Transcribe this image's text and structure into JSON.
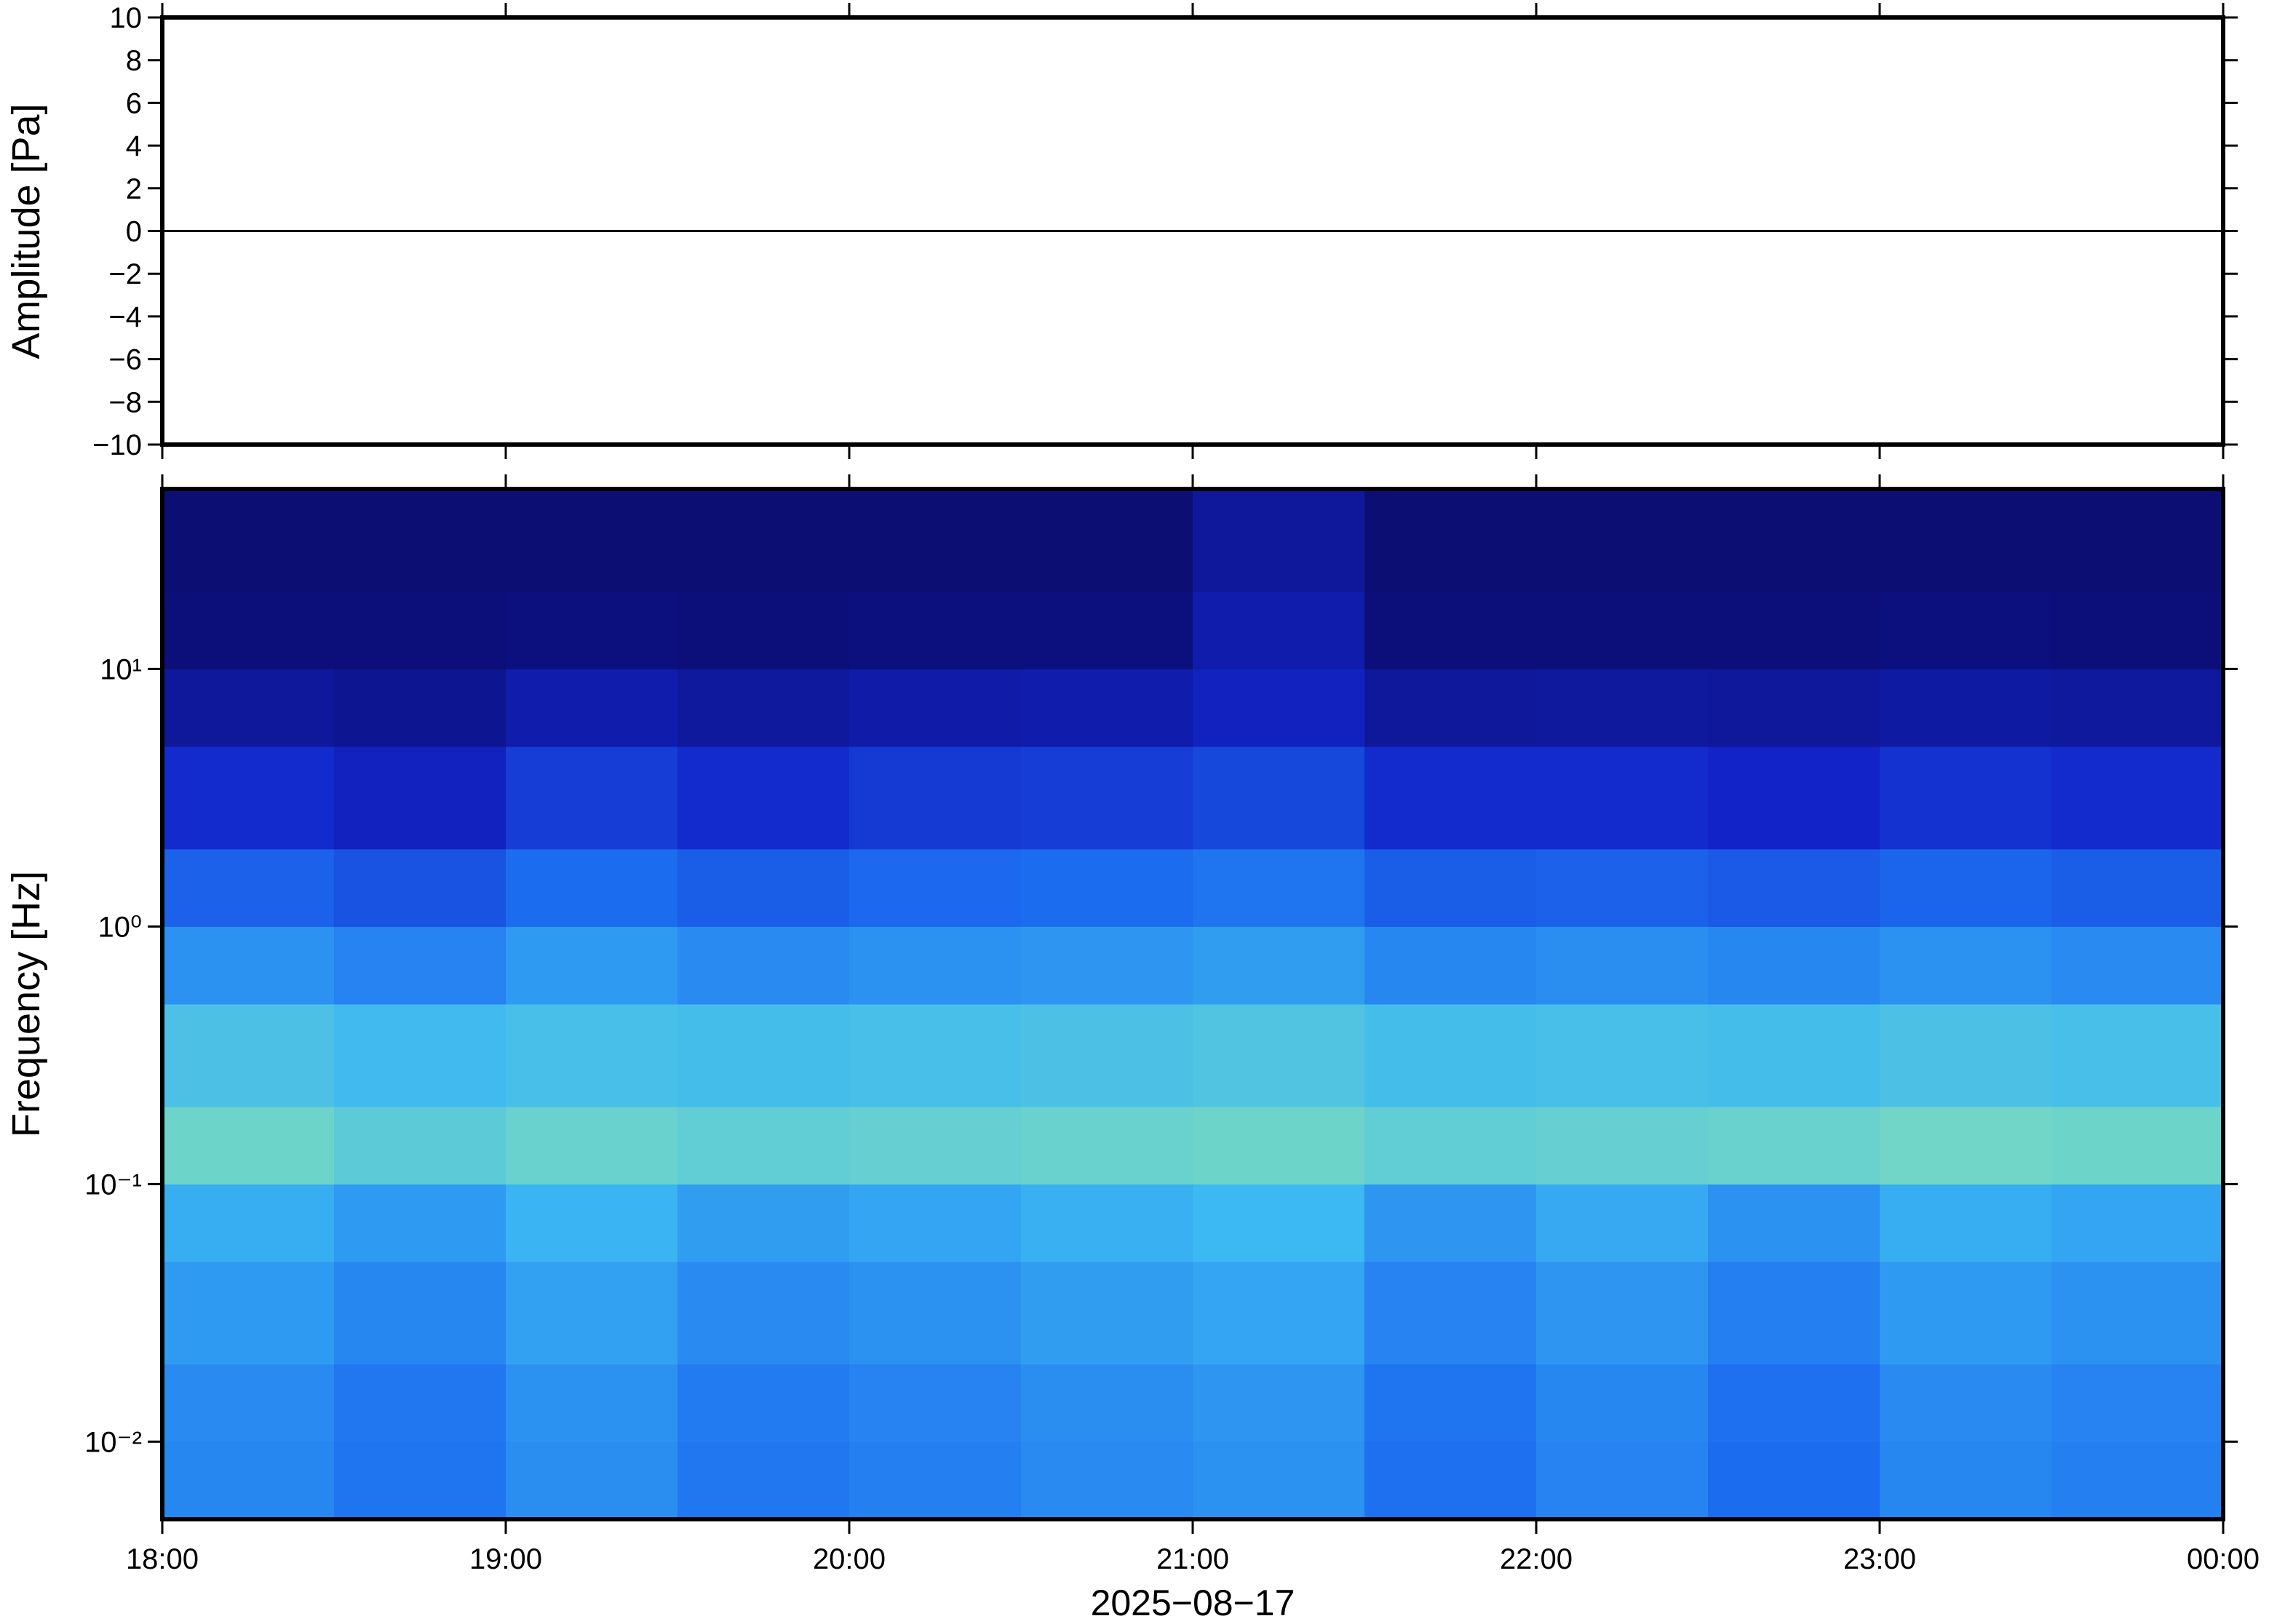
{
  "chart_data": [
    {
      "type": "line",
      "ylabel": "Amplitude [Pa]",
      "x": [
        18,
        19,
        20,
        21,
        22,
        23,
        24
      ],
      "series": [
        {
          "name": "Amplitude",
          "color": "#000000",
          "values": [
            0,
            0,
            0,
            0,
            0,
            0,
            0
          ]
        }
      ],
      "xlim": [
        18,
        24
      ],
      "ylim": [
        -10,
        10
      ],
      "yticks": [
        {
          "value": -10,
          "label": "−10"
        },
        {
          "value": -8,
          "label": "−8"
        },
        {
          "value": -6,
          "label": "−6"
        },
        {
          "value": -4,
          "label": "−4"
        },
        {
          "value": -2,
          "label": "−2"
        },
        0,
        2,
        4,
        6,
        8,
        10
      ]
    },
    {
      "type": "heatmap",
      "ylabel": "Frequency [Hz]",
      "xlabel": "2025−08−17",
      "ylog": true,
      "xlim": [
        18,
        24
      ],
      "ylim": [
        0.005,
        50
      ],
      "xticks": [
        {
          "value": 18,
          "label": "18:00"
        },
        {
          "value": 19,
          "label": "19:00"
        },
        {
          "value": 20,
          "label": "20:00"
        },
        {
          "value": 21,
          "label": "21:00"
        },
        {
          "value": 22,
          "label": "22:00"
        },
        {
          "value": 23,
          "label": "23:00"
        },
        {
          "value": 24,
          "label": "00:00"
        }
      ],
      "yticks": [
        {
          "value": 0.01,
          "label": "10⁻²"
        },
        {
          "value": 0.1,
          "label": "10⁻¹"
        },
        {
          "value": 1,
          "label": "10⁰"
        },
        {
          "value": 10,
          "label": "10¹"
        }
      ],
      "x_edges": [
        18,
        18.5,
        19,
        19.5,
        20,
        20.5,
        21,
        21.5,
        22,
        22.5,
        23,
        23.5,
        24
      ],
      "y_edges": [
        0.005,
        0.01,
        0.02,
        0.05,
        0.1,
        0.2,
        0.5,
        1,
        2,
        5,
        10,
        20,
        50
      ],
      "colormap": [
        "#0b0b6b",
        "#1224c8",
        "#1c6cf0",
        "#3cb8f2",
        "#8ee6b0",
        "#f2f090"
      ],
      "values": [
        [
          0.47,
          0.42,
          0.49,
          0.43,
          0.45,
          0.48,
          0.5,
          0.41,
          0.46,
          0.4,
          0.47,
          0.45
        ],
        [
          0.48,
          0.43,
          0.5,
          0.44,
          0.46,
          0.49,
          0.51,
          0.42,
          0.47,
          0.41,
          0.48,
          0.46
        ],
        [
          0.52,
          0.47,
          0.54,
          0.48,
          0.5,
          0.53,
          0.55,
          0.46,
          0.51,
          0.45,
          0.52,
          0.5
        ],
        [
          0.57,
          0.52,
          0.59,
          0.53,
          0.55,
          0.58,
          0.6,
          0.51,
          0.56,
          0.5,
          0.57,
          0.55
        ],
        [
          0.72,
          0.68,
          0.71,
          0.69,
          0.7,
          0.71,
          0.72,
          0.69,
          0.7,
          0.71,
          0.73,
          0.72
        ],
        [
          0.64,
          0.61,
          0.63,
          0.62,
          0.63,
          0.64,
          0.65,
          0.62,
          0.63,
          0.62,
          0.64,
          0.63
        ],
        [
          0.5,
          0.46,
          0.52,
          0.48,
          0.5,
          0.51,
          0.53,
          0.47,
          0.49,
          0.47,
          0.5,
          0.48
        ],
        [
          0.37,
          0.33,
          0.4,
          0.36,
          0.39,
          0.4,
          0.42,
          0.36,
          0.37,
          0.35,
          0.38,
          0.36
        ],
        [
          0.22,
          0.18,
          0.27,
          0.22,
          0.26,
          0.27,
          0.3,
          0.22,
          0.22,
          0.2,
          0.24,
          0.22
        ],
        [
          0.1,
          0.08,
          0.14,
          0.11,
          0.13,
          0.14,
          0.18,
          0.1,
          0.11,
          0.1,
          0.12,
          0.11
        ],
        [
          0.03,
          0.03,
          0.04,
          0.03,
          0.04,
          0.04,
          0.14,
          0.03,
          0.03,
          0.03,
          0.04,
          0.03
        ],
        [
          0.02,
          0.02,
          0.02,
          0.02,
          0.02,
          0.02,
          0.1,
          0.02,
          0.02,
          0.02,
          0.02,
          0.02
        ]
      ]
    }
  ]
}
